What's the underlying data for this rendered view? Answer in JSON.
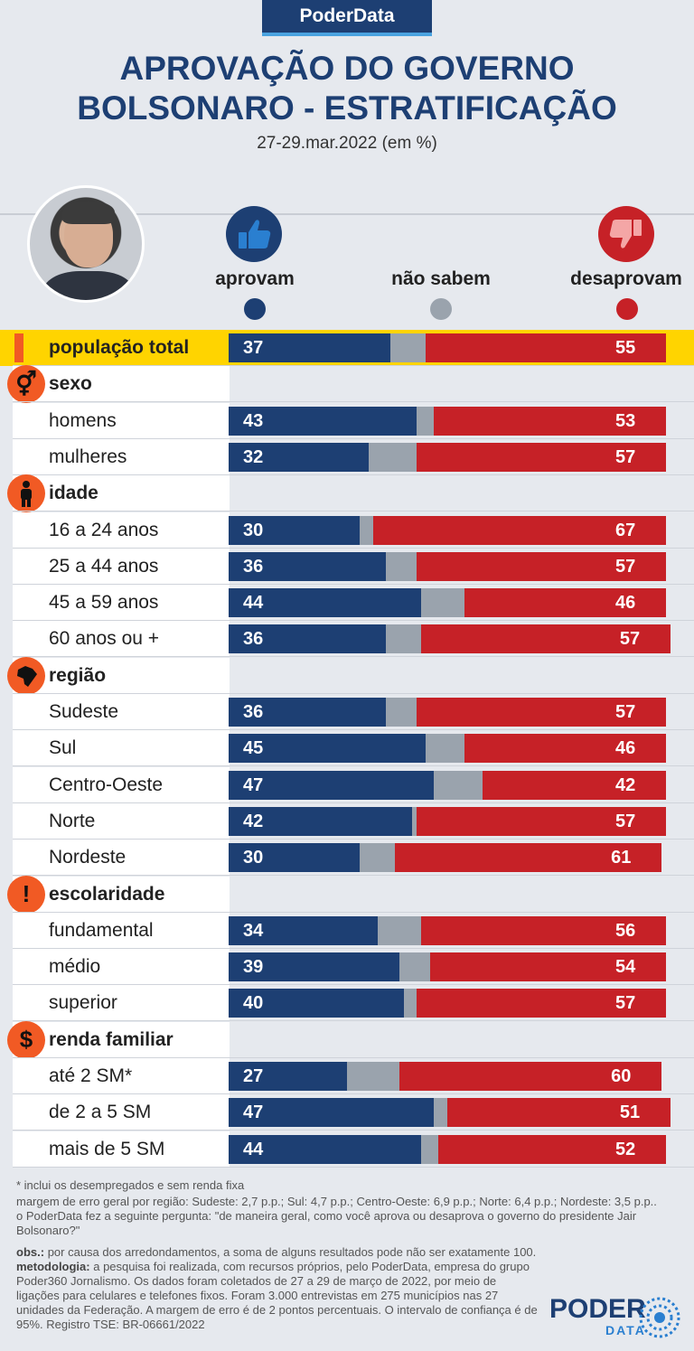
{
  "brand": "PoderData",
  "title_line1": "APROVAÇÃO DO GOVERNO",
  "title_line2": "BOLSONARO - ESTRATIFICAÇÃO",
  "subtitle": "27-29.mar.2022 (em %)",
  "legend": {
    "approve": "aprovam",
    "dont_know": "não sabem",
    "disapprove": "desaprovam"
  },
  "colors": {
    "approve": "#1d3f73",
    "dont_know": "#9aa3ad",
    "disapprove": "#c62127",
    "accent": "#f15a24",
    "highlight": "#ffd400"
  },
  "categories": {
    "sexo": "sexo",
    "idade": "idade",
    "regiao": "região",
    "escolaridade": "escolaridade",
    "renda": "renda familiar"
  },
  "icons": {
    "sexo": "gender-icon",
    "idade": "person-icon",
    "regiao": "brazil-map-icon",
    "escolaridade": "exclamation-icon",
    "renda": "dollar-icon"
  },
  "chart_data": {
    "type": "bar",
    "stacked": true,
    "series": [
      {
        "name": "aprovam",
        "color": "#1d3f73"
      },
      {
        "name": "não sabem",
        "color": "#9aa3ad"
      },
      {
        "name": "desaprovam",
        "color": "#c62127"
      }
    ],
    "rows": [
      {
        "label": "população total",
        "approve": 37,
        "dont_know": 8,
        "disapprove": 55
      },
      {
        "label": "homens",
        "approve": 43,
        "dont_know": 4,
        "disapprove": 53
      },
      {
        "label": "mulheres",
        "approve": 32,
        "dont_know": 11,
        "disapprove": 57
      },
      {
        "label": "16 a 24 anos",
        "approve": 30,
        "dont_know": 3,
        "disapprove": 67
      },
      {
        "label": "25 a 44 anos",
        "approve": 36,
        "dont_know": 7,
        "disapprove": 57
      },
      {
        "label": "45 a 59 anos",
        "approve": 44,
        "dont_know": 10,
        "disapprove": 46
      },
      {
        "label": "60 anos ou +",
        "approve": 36,
        "dont_know": 8,
        "disapprove": 57
      },
      {
        "label": "Sudeste",
        "approve": 36,
        "dont_know": 7,
        "disapprove": 57
      },
      {
        "label": "Sul",
        "approve": 45,
        "dont_know": 9,
        "disapprove": 46
      },
      {
        "label": "Centro-Oeste",
        "approve": 47,
        "dont_know": 11,
        "disapprove": 42
      },
      {
        "label": "Norte",
        "approve": 42,
        "dont_know": 1,
        "disapprove": 57
      },
      {
        "label": "Nordeste",
        "approve": 30,
        "dont_know": 8,
        "disapprove": 61
      },
      {
        "label": "fundamental",
        "approve": 34,
        "dont_know": 10,
        "disapprove": 56
      },
      {
        "label": "médio",
        "approve": 39,
        "dont_know": 7,
        "disapprove": 54
      },
      {
        "label": "superior",
        "approve": 40,
        "dont_know": 3,
        "disapprove": 57
      },
      {
        "label": "até 2 SM*",
        "approve": 27,
        "dont_know": 12,
        "disapprove": 60
      },
      {
        "label": "de 2 a 5 SM",
        "approve": 47,
        "dont_know": 3,
        "disapprove": 51
      },
      {
        "label": "mais de 5 SM",
        "approve": 44,
        "dont_know": 4,
        "disapprove": 52
      }
    ]
  },
  "footnotes": {
    "note1": "* inclui os desempregados e sem renda fixa",
    "note2": "margem de erro geral por região: Sudeste: 2,7 p.p.; Sul: 4,7 p.p.; Centro-Oeste: 6,9 p.p.; Norte: 6,4 p.p.; Nordeste: 3,5 p.p..",
    "note3": "o PoderData fez a seguinte pergunta: \"de maneira geral, como você aprova ou desaprova o governo do presidente Jair Bolsonaro?\"",
    "obs_label": "obs.:",
    "obs": "por causa dos arredondamentos, a soma de alguns resultados pode não ser exatamente 100.",
    "met_label": "metodologia:",
    "met": "a pesquisa foi realizada, com recursos próprios, pelo PoderData, empresa do grupo Poder360 Jornalismo. Os dados foram coletados de 27 a 29 de março de 2022, por meio de ligações para celulares e telefones fixos. Foram 3.000 entrevistas em 275 municípios nas 27 unidades da Federação. A margem de erro é de 2 pontos percentuais. O intervalo de confiança é de 95%. Registro TSE: BR-06661/2022"
  },
  "logo": {
    "word1": "PODER",
    "word2": "DATA"
  }
}
